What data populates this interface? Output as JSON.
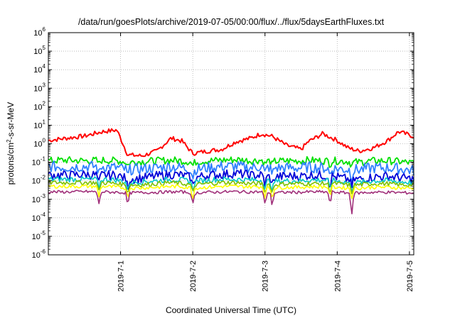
{
  "chart_data": {
    "type": "line",
    "title": "/data/run/goesPlots/archive/2019-07-05/00:00/flux/../flux/5daysEarthFluxes.txt",
    "xlabel": "Coordinated Universal Time (UTC)",
    "ylabel_base": "protons/cm",
    "ylabel_sup": "2",
    "ylabel_rest": "-s-sr-MeV",
    "y_scale": "log",
    "ylim_exponents": [
      -6,
      6
    ],
    "y_tick_labels": [
      {
        "exp": 6,
        "base": "10",
        "sup": "6"
      },
      {
        "exp": 5,
        "base": "10",
        "sup": "5"
      },
      {
        "exp": 4,
        "base": "10",
        "sup": "4"
      },
      {
        "exp": 3,
        "base": "10",
        "sup": "3"
      },
      {
        "exp": 2,
        "base": "10",
        "sup": "2"
      },
      {
        "exp": 1,
        "base": "10",
        "sup": "1"
      },
      {
        "exp": 0,
        "base": "10",
        "sup": "0"
      },
      {
        "exp": -1,
        "base": "10",
        "sup": "-1"
      },
      {
        "exp": -2,
        "base": "10",
        "sup": "-2"
      },
      {
        "exp": -3,
        "base": "10",
        "sup": "-3"
      },
      {
        "exp": -4,
        "base": "10",
        "sup": "-4"
      },
      {
        "exp": -5,
        "base": "10",
        "sup": "-5"
      },
      {
        "exp": -6,
        "base": "10",
        "sup": "-6"
      }
    ],
    "x_unit": "days",
    "xlim_days": [
      0,
      5.06
    ],
    "x_ticks": [
      {
        "day": 1,
        "label": "2019-7-1"
      },
      {
        "day": 2,
        "label": "2019-7-2"
      },
      {
        "day": 3,
        "label": "2019-7-3"
      },
      {
        "day": 4,
        "label": "2019-7-4"
      },
      {
        "day": 5,
        "label": "2019-7-5"
      }
    ],
    "grid": true,
    "x_points_days": [
      0.0,
      0.25,
      0.5,
      0.75,
      0.95,
      1.1,
      1.3,
      1.5,
      1.7,
      1.85,
      2.0,
      2.2,
      2.4,
      2.6,
      2.8,
      2.95,
      3.1,
      3.3,
      3.5,
      3.6,
      3.8,
      4.0,
      4.15,
      4.3,
      4.5,
      4.7,
      4.85,
      5.06
    ],
    "dip_days": [
      0.7,
      1.1,
      2.0,
      3.0,
      3.1,
      3.9,
      4.2
    ],
    "series": [
      {
        "color": "#ff0000",
        "width": 2.0,
        "noise": 0.12,
        "dip": 0.0,
        "values": [
          1.5,
          2.0,
          2.6,
          4.5,
          5.5,
          0.25,
          0.22,
          0.4,
          2.0,
          1.4,
          0.3,
          0.4,
          0.5,
          1.3,
          2.0,
          3.5,
          2.5,
          0.8,
          0.5,
          1.3,
          3.5,
          1.5,
          0.6,
          0.4,
          0.6,
          1.5,
          4.5,
          2.5
        ]
      },
      {
        "color": "#00e000",
        "width": 1.8,
        "noise": 0.2,
        "dip": 0.15,
        "values": [
          0.12,
          0.13,
          0.12,
          0.13,
          0.12,
          0.1,
          0.11,
          0.12,
          0.13,
          0.12,
          0.1,
          0.12,
          0.13,
          0.14,
          0.12,
          0.13,
          0.11,
          0.12,
          0.12,
          0.13,
          0.12,
          0.12,
          0.11,
          0.1,
          0.12,
          0.12,
          0.11,
          0.09
        ]
      },
      {
        "color": "#2f80ff",
        "width": 1.8,
        "noise": 0.3,
        "dip": 0.3,
        "values": [
          0.06,
          0.055,
          0.06,
          0.06,
          0.05,
          0.04,
          0.045,
          0.05,
          0.06,
          0.05,
          0.04,
          0.05,
          0.06,
          0.06,
          0.05,
          0.06,
          0.05,
          0.05,
          0.05,
          0.055,
          0.05,
          0.045,
          0.04,
          0.04,
          0.05,
          0.05,
          0.045,
          0.035
        ]
      },
      {
        "color": "#0000d8",
        "width": 1.8,
        "noise": 0.25,
        "dip": 0.35,
        "values": [
          0.02,
          0.02,
          0.022,
          0.02,
          0.02,
          0.012,
          0.014,
          0.018,
          0.022,
          0.02,
          0.014,
          0.02,
          0.022,
          0.025,
          0.02,
          0.02,
          0.015,
          0.018,
          0.018,
          0.02,
          0.02,
          0.016,
          0.012,
          0.012,
          0.016,
          0.018,
          0.015,
          0.012
        ]
      },
      {
        "color": "#00c8c8",
        "width": 1.6,
        "noise": 0.15,
        "dip": 0.35,
        "values": [
          0.012,
          0.012,
          0.012,
          0.012,
          0.011,
          0.008,
          0.009,
          0.01,
          0.012,
          0.011,
          0.009,
          0.011,
          0.012,
          0.012,
          0.011,
          0.011,
          0.009,
          0.01,
          0.01,
          0.011,
          0.011,
          0.01,
          0.008,
          0.008,
          0.01,
          0.01,
          0.009,
          0.008
        ]
      },
      {
        "color": "#80c000",
        "width": 1.6,
        "noise": 0.12,
        "dip": 0.35,
        "values": [
          0.008,
          0.008,
          0.008,
          0.008,
          0.007,
          0.006,
          0.006,
          0.007,
          0.008,
          0.007,
          0.006,
          0.007,
          0.008,
          0.008,
          0.007,
          0.007,
          0.006,
          0.007,
          0.007,
          0.007,
          0.007,
          0.007,
          0.006,
          0.006,
          0.007,
          0.007,
          0.006,
          0.006
        ]
      },
      {
        "color": "#ffff00",
        "width": 1.6,
        "noise": 0.1,
        "dip": 0.4,
        "values": [
          0.005,
          0.005,
          0.005,
          0.005,
          0.0045,
          0.004,
          0.0042,
          0.0045,
          0.005,
          0.0048,
          0.004,
          0.0045,
          0.005,
          0.005,
          0.0048,
          0.0048,
          0.004,
          0.0045,
          0.0045,
          0.0048,
          0.0048,
          0.0045,
          0.004,
          0.004,
          0.0045,
          0.0045,
          0.0042,
          0.004
        ]
      },
      {
        "color": "#a0307a",
        "width": 1.6,
        "noise": 0.08,
        "dip": 0.5,
        "values": [
          0.0025,
          0.0025,
          0.0026,
          0.0025,
          0.0024,
          0.0022,
          0.0023,
          0.0024,
          0.0025,
          0.0025,
          0.0022,
          0.0024,
          0.0025,
          0.0026,
          0.0025,
          0.0025,
          0.0022,
          0.0024,
          0.0024,
          0.0025,
          0.0025,
          0.0024,
          0.0022,
          0.0022,
          0.0024,
          0.0024,
          0.0023,
          0.0022
        ]
      }
    ]
  }
}
